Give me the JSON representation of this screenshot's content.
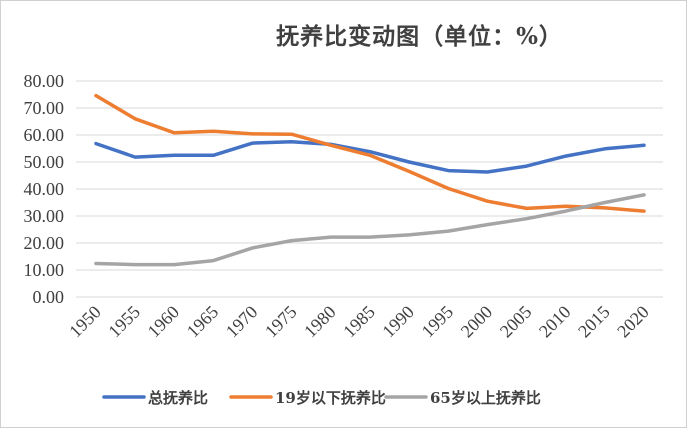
{
  "chart_data": {
    "type": "line",
    "title": "抚养比变动图（单位：%）",
    "x": [
      "1950",
      "1955",
      "1960",
      "1965",
      "1970",
      "1975",
      "1980",
      "1985",
      "1990",
      "1995",
      "2000",
      "2005",
      "2010",
      "2015",
      "2020"
    ],
    "ylim": [
      0,
      80
    ],
    "yticks": [
      "0.00",
      "10.00",
      "20.00",
      "30.00",
      "40.00",
      "50.00",
      "60.00",
      "70.00",
      "80.00"
    ],
    "grid": true,
    "legend_position": "bottom",
    "series": [
      {
        "name": "总抚养比",
        "color": "#4472c4",
        "values": [
          56.8,
          51.8,
          52.5,
          52.5,
          57.0,
          57.5,
          56.5,
          53.8,
          50.0,
          46.8,
          46.3,
          48.5,
          52.2,
          54.9,
          56.2
        ]
      },
      {
        "name": "19岁以下抚养比",
        "color": "#ed7d31",
        "values": [
          74.6,
          66.0,
          60.8,
          61.4,
          60.4,
          60.3,
          56.2,
          52.5,
          46.5,
          40.2,
          35.5,
          32.8,
          33.6,
          33.0,
          31.8
        ]
      },
      {
        "name": "65岁以上抚养比",
        "color": "#a5a5a5",
        "values": [
          12.4,
          12.0,
          12.0,
          13.5,
          18.2,
          20.9,
          22.2,
          22.2,
          23.0,
          24.4,
          26.8,
          29.0,
          31.8,
          35.0,
          37.8
        ]
      }
    ]
  }
}
